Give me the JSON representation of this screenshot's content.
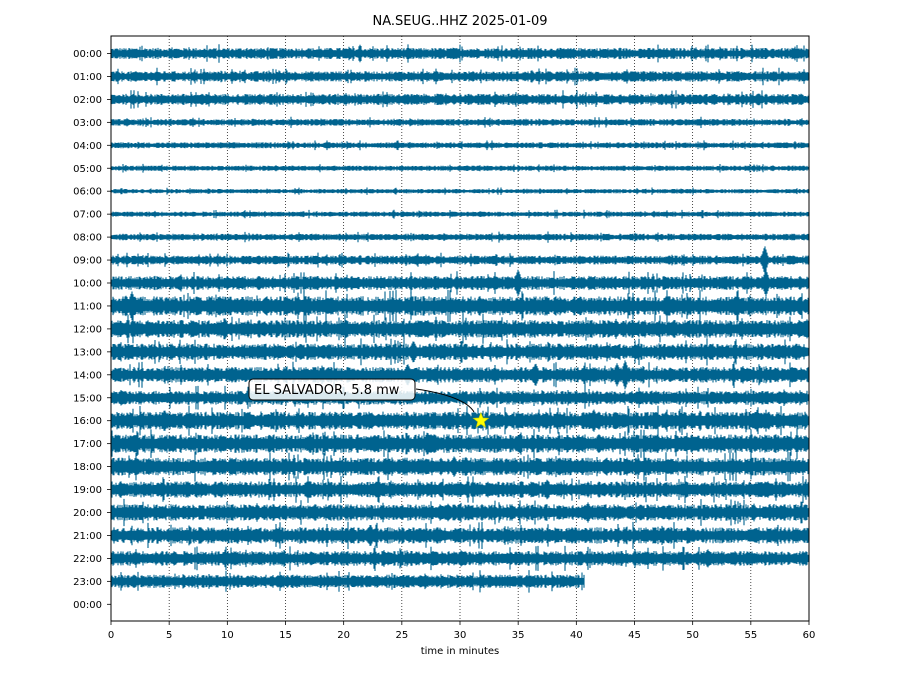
{
  "chart_data": {
    "type": "line",
    "title": "NA.SEUG..HHZ 2025-01-09",
    "xlabel": "time in minutes",
    "ylabel": "",
    "xlim": [
      0,
      60
    ],
    "x_ticks": [
      0,
      5,
      10,
      15,
      20,
      25,
      30,
      35,
      40,
      45,
      50,
      55,
      60
    ],
    "grid": "vertical dotted lines at each 5 minutes",
    "trace_color": "#00638f",
    "rows": [
      {
        "label": "00:00",
        "amp": 0.75,
        "end": 60
      },
      {
        "label": "01:00",
        "amp": 0.7,
        "end": 60
      },
      {
        "label": "02:00",
        "amp": 0.75,
        "end": 60
      },
      {
        "label": "03:00",
        "amp": 0.45,
        "end": 60
      },
      {
        "label": "04:00",
        "amp": 0.4,
        "end": 60
      },
      {
        "label": "05:00",
        "amp": 0.35,
        "end": 60
      },
      {
        "label": "06:00",
        "amp": 0.3,
        "end": 60
      },
      {
        "label": "07:00",
        "amp": 0.35,
        "end": 60
      },
      {
        "label": "08:00",
        "amp": 0.45,
        "end": 60
      },
      {
        "label": "09:00",
        "amp": 0.6,
        "end": 60
      },
      {
        "label": "10:00",
        "amp": 0.95,
        "end": 60
      },
      {
        "label": "11:00",
        "amp": 1.3,
        "end": 60
      },
      {
        "label": "12:00",
        "amp": 1.2,
        "end": 60
      },
      {
        "label": "13:00",
        "amp": 1.1,
        "end": 60
      },
      {
        "label": "14:00",
        "amp": 1.05,
        "end": 60
      },
      {
        "label": "15:00",
        "amp": 0.95,
        "end": 60
      },
      {
        "label": "16:00",
        "amp": 1.2,
        "end": 60
      },
      {
        "label": "17:00",
        "amp": 1.25,
        "end": 60
      },
      {
        "label": "18:00",
        "amp": 1.2,
        "end": 60
      },
      {
        "label": "19:00",
        "amp": 1.1,
        "end": 60
      },
      {
        "label": "20:00",
        "amp": 1.1,
        "end": 60
      },
      {
        "label": "21:00",
        "amp": 1.1,
        "end": 60
      },
      {
        "label": "22:00",
        "amp": 1.0,
        "end": 60
      },
      {
        "label": "23:00",
        "amp": 0.9,
        "end": 40.7
      },
      {
        "label": "00:00",
        "amp": 0,
        "end": 0
      }
    ],
    "spikes": [
      {
        "row": 9,
        "minute": 56.2,
        "amp": 2.3
      },
      {
        "row": 10,
        "minute": 35.0,
        "amp": 2.0
      },
      {
        "row": 10,
        "minute": 56.3,
        "amp": 2.0
      },
      {
        "row": 11,
        "minute": 1.8,
        "amp": 2.0
      },
      {
        "row": 12,
        "minute": 9.8,
        "amp": 1.3
      },
      {
        "row": 13,
        "minute": 26.0,
        "amp": 1.5
      },
      {
        "row": 14,
        "minute": 25.5,
        "amp": 1.5
      },
      {
        "row": 14,
        "minute": 36.5,
        "amp": 1.6
      },
      {
        "row": 14,
        "minute": 43.5,
        "amp": 1.6
      },
      {
        "row": 14,
        "minute": 44.2,
        "amp": 2.2
      },
      {
        "row": 16,
        "minute": 4.6,
        "amp": 1.4
      },
      {
        "row": 16,
        "minute": 41.5,
        "amp": 1.5
      },
      {
        "row": 17,
        "minute": 27.2,
        "amp": 1.5
      },
      {
        "row": 18,
        "minute": 29.5,
        "amp": 1.3
      },
      {
        "row": 19,
        "minute": 37.5,
        "amp": 1.3
      },
      {
        "row": 20,
        "minute": 41.0,
        "amp": 1.3
      },
      {
        "row": 21,
        "minute": 22.3,
        "amp": 1.5
      },
      {
        "row": 22,
        "minute": 51.3,
        "amp": 1.2
      }
    ],
    "event": {
      "label": "EL SALVADOR, 5.8 mw",
      "row": 16,
      "minute": 31.8,
      "marker": "star",
      "marker_color": "#ffff00"
    }
  }
}
